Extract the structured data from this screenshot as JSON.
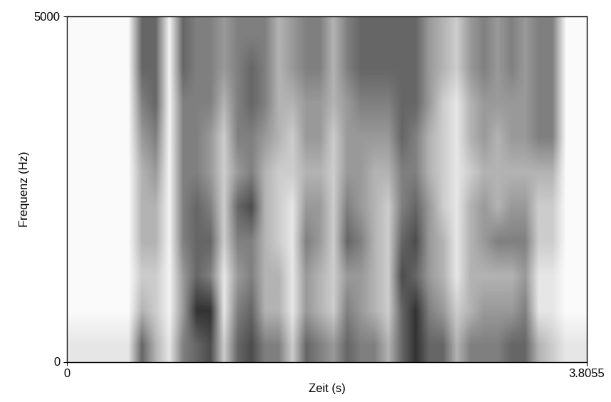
{
  "chart_data": {
    "type": "heatmap",
    "xlabel": "Zeit (s)",
    "ylabel": "Frequenz (Hz)",
    "xlim": [
      0,
      3.8055
    ],
    "ylim": [
      0,
      5000
    ],
    "xticks": [
      0,
      3.8055
    ],
    "yticks": [
      0,
      5000
    ],
    "clim": [
      0,
      1
    ],
    "color": "gray_r",
    "cells": [
      [
        0.1,
        0.02,
        0.02,
        0.02,
        0.02,
        0.02,
        0.02,
        0.02,
        0.02,
        0.02
      ],
      [
        0.1,
        0.02,
        0.02,
        0.02,
        0.02,
        0.02,
        0.02,
        0.02,
        0.02,
        0.02
      ],
      [
        0.1,
        0.02,
        0.02,
        0.02,
        0.02,
        0.02,
        0.02,
        0.02,
        0.02,
        0.02
      ],
      [
        0.1,
        0.02,
        0.02,
        0.02,
        0.02,
        0.02,
        0.02,
        0.02,
        0.02,
        0.02
      ],
      [
        0.1,
        0.02,
        0.02,
        0.02,
        0.02,
        0.02,
        0.02,
        0.02,
        0.02,
        0.02
      ],
      [
        0.6,
        0.3,
        0.2,
        0.3,
        0.3,
        0.3,
        0.4,
        0.5,
        0.6,
        0.6
      ],
      [
        0.3,
        0.2,
        0.2,
        0.3,
        0.3,
        0.4,
        0.5,
        0.6,
        0.6,
        0.6
      ],
      [
        0.1,
        0.05,
        0.05,
        0.05,
        0.05,
        0.05,
        0.05,
        0.05,
        0.05,
        0.05
      ],
      [
        0.5,
        0.4,
        0.4,
        0.5,
        0.5,
        0.5,
        0.5,
        0.5,
        0.6,
        0.6
      ],
      [
        0.6,
        0.8,
        0.6,
        0.6,
        0.6,
        0.5,
        0.5,
        0.5,
        0.5,
        0.5
      ],
      [
        0.7,
        0.8,
        0.5,
        0.6,
        0.5,
        0.4,
        0.4,
        0.5,
        0.5,
        0.5
      ],
      [
        0.2,
        0.1,
        0.1,
        0.2,
        0.2,
        0.2,
        0.2,
        0.3,
        0.4,
        0.4
      ],
      [
        0.6,
        0.5,
        0.4,
        0.5,
        0.6,
        0.4,
        0.5,
        0.5,
        0.5,
        0.5
      ],
      [
        0.7,
        0.6,
        0.5,
        0.5,
        0.7,
        0.5,
        0.5,
        0.6,
        0.6,
        0.5
      ],
      [
        0.5,
        0.3,
        0.3,
        0.3,
        0.3,
        0.3,
        0.4,
        0.5,
        0.5,
        0.5
      ],
      [
        0.5,
        0.3,
        0.3,
        0.2,
        0.2,
        0.2,
        0.3,
        0.3,
        0.3,
        0.3
      ],
      [
        0.2,
        0.1,
        0.1,
        0.1,
        0.1,
        0.2,
        0.2,
        0.3,
        0.4,
        0.4
      ],
      [
        0.6,
        0.4,
        0.4,
        0.5,
        0.4,
        0.3,
        0.4,
        0.4,
        0.5,
        0.5
      ],
      [
        0.5,
        0.3,
        0.3,
        0.4,
        0.4,
        0.3,
        0.4,
        0.4,
        0.5,
        0.5
      ],
      [
        0.4,
        0.2,
        0.2,
        0.2,
        0.2,
        0.2,
        0.2,
        0.3,
        0.3,
        0.3
      ],
      [
        0.6,
        0.5,
        0.4,
        0.6,
        0.5,
        0.4,
        0.4,
        0.4,
        0.5,
        0.5
      ],
      [
        0.5,
        0.4,
        0.4,
        0.5,
        0.4,
        0.4,
        0.4,
        0.5,
        0.6,
        0.6
      ],
      [
        0.5,
        0.3,
        0.3,
        0.3,
        0.3,
        0.3,
        0.4,
        0.5,
        0.6,
        0.6
      ],
      [
        0.3,
        0.2,
        0.2,
        0.2,
        0.2,
        0.3,
        0.4,
        0.5,
        0.6,
        0.6
      ],
      [
        0.6,
        0.6,
        0.7,
        0.6,
        0.5,
        0.5,
        0.6,
        0.6,
        0.6,
        0.6
      ],
      [
        0.8,
        0.8,
        0.6,
        0.7,
        0.6,
        0.5,
        0.5,
        0.6,
        0.6,
        0.6
      ],
      [
        0.6,
        0.5,
        0.4,
        0.4,
        0.4,
        0.3,
        0.3,
        0.4,
        0.4,
        0.4
      ],
      [
        0.6,
        0.4,
        0.3,
        0.3,
        0.2,
        0.2,
        0.2,
        0.2,
        0.3,
        0.3
      ],
      [
        0.3,
        0.2,
        0.1,
        0.1,
        0.1,
        0.1,
        0.1,
        0.1,
        0.2,
        0.2
      ],
      [
        0.5,
        0.3,
        0.3,
        0.3,
        0.3,
        0.2,
        0.3,
        0.3,
        0.4,
        0.4
      ],
      [
        0.5,
        0.4,
        0.3,
        0.4,
        0.4,
        0.3,
        0.4,
        0.4,
        0.5,
        0.5
      ],
      [
        0.5,
        0.4,
        0.3,
        0.5,
        0.3,
        0.3,
        0.3,
        0.4,
        0.4,
        0.4
      ],
      [
        0.6,
        0.4,
        0.3,
        0.5,
        0.4,
        0.3,
        0.4,
        0.4,
        0.5,
        0.5
      ],
      [
        0.6,
        0.5,
        0.4,
        0.5,
        0.4,
        0.3,
        0.4,
        0.4,
        0.4,
        0.4
      ],
      [
        0.3,
        0.1,
        0.1,
        0.2,
        0.2,
        0.3,
        0.5,
        0.5,
        0.5,
        0.5
      ],
      [
        0.2,
        0.1,
        0.1,
        0.2,
        0.2,
        0.3,
        0.5,
        0.5,
        0.5,
        0.5
      ],
      [
        0.1,
        0.02,
        0.02,
        0.02,
        0.02,
        0.02,
        0.02,
        0.02,
        0.02,
        0.02
      ],
      [
        0.1,
        0.02,
        0.02,
        0.02,
        0.02,
        0.02,
        0.02,
        0.02,
        0.02,
        0.02
      ]
    ]
  }
}
